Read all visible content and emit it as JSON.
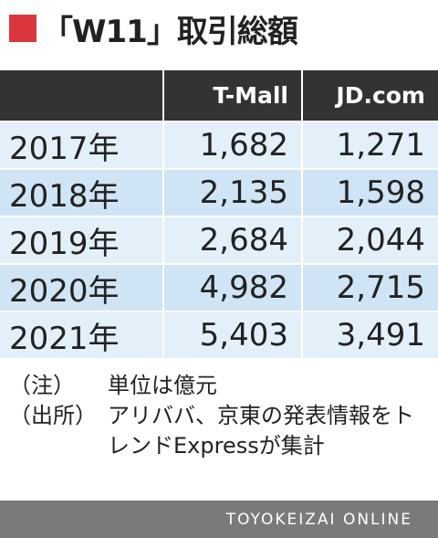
{
  "header": {
    "title": "「W11」取引総額"
  },
  "table": {
    "columns": [
      "T-Mall",
      "JD.com"
    ],
    "rows": [
      [
        "2017年",
        "1,682",
        "1,271"
      ],
      [
        "2018年",
        "2,135",
        "1,598"
      ],
      [
        "2019年",
        "2,684",
        "2,044"
      ],
      [
        "2020年",
        "4,982",
        "2,715"
      ],
      [
        "2021年",
        "5,403",
        "3,491"
      ]
    ]
  },
  "notes": [
    {
      "label": "（注）",
      "text": "単位は億元"
    },
    {
      "label": "（出所）",
      "text": "アリババ、京東の発表情報をトレンドExpressが集計"
    }
  ],
  "footer": {
    "source": "TOYOKEIZAI ONLINE"
  }
}
